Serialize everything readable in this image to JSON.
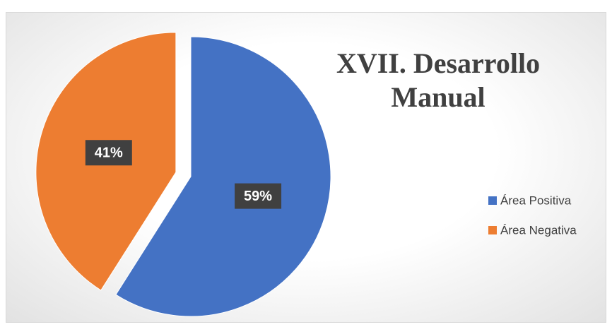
{
  "chart_data": {
    "type": "pie",
    "title": "XVII. Desarrollo Manual",
    "categories": [
      "Área Positiva",
      "Área Negativa"
    ],
    "values": [
      59,
      41
    ],
    "value_labels": [
      "59%",
      "41%"
    ],
    "colors": [
      "#4472c4",
      "#ed7d31"
    ],
    "legend": "right"
  }
}
